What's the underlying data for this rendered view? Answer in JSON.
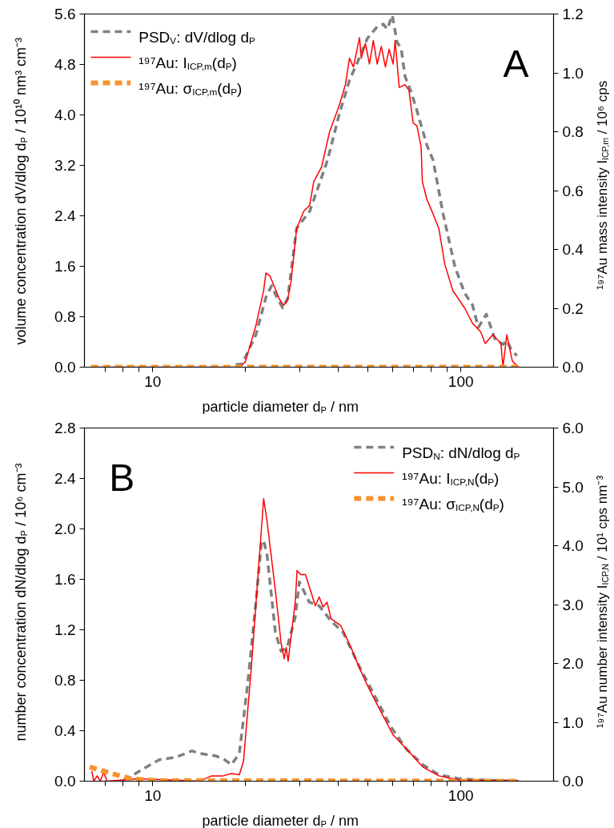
{
  "chart_data": [
    {
      "type": "line",
      "log": "x",
      "legend": "top left",
      "xlabel": "particle diameter d$_{P}$ / nm",
      "ylabel": "volume concentration dV/dlog d$_{P}$ / 10¹⁰ nm³ cm⁻³",
      "y2label": "¹⁹⁷Au mass intensity I$_{ICP,m}$ / 10⁶ cps",
      "annotations": [
        "A"
      ],
      "xlim": [
        6,
        200
      ],
      "xticks": [
        {
          "value": 7,
          "label": null
        },
        {
          "value": 8,
          "label": null
        },
        {
          "value": 9,
          "label": null
        },
        10,
        {
          "value": 20,
          "label": null
        },
        {
          "value": 30,
          "label": null
        },
        {
          "value": 40,
          "label": null
        },
        {
          "value": 50,
          "label": null
        },
        {
          "value": 60,
          "label": null
        },
        {
          "value": 70,
          "label": null
        },
        {
          "value": 80,
          "label": null
        },
        {
          "value": 90,
          "label": null
        },
        100
      ],
      "ylim": [
        0,
        5.6
      ],
      "yticks": [
        {
          "value": 0,
          "label": "0.0"
        },
        0.8,
        1.6,
        2.4,
        3.2,
        {
          "value": 4,
          "label": "4.0"
        },
        4.8,
        5.6
      ],
      "y2lim": [
        0,
        1.2
      ],
      "y2ticks": [
        {
          "value": 0,
          "label": "0.0"
        },
        0.2,
        0.4,
        0.6,
        0.8,
        {
          "value": 1,
          "label": "1.0"
        },
        1.2
      ],
      "series": [
        {
          "name": "PSD$_{V}$: dV/dlog d$_{P}$",
          "color": "#808080",
          "line_style": "dashed",
          "x": [
            18.6,
            19.5,
            21.6,
            23.3,
            24.3,
            25.1,
            26.4,
            27.4,
            29.3,
            30.9,
            32.3,
            33.8,
            36.9,
            40.3,
            43.5,
            46.9,
            49.7,
            53.5,
            56.0,
            57.7,
            59.9,
            62.1,
            64.0,
            65.9,
            68.9,
            72.0,
            77.6,
            81.3,
            87.5,
            95.7,
            103,
            109,
            114,
            121,
            129,
            137,
            141,
            145,
            152
          ],
          "values": [
            0.04,
            0.05,
            0.51,
            1.11,
            1.29,
            1.14,
            0.94,
            1.08,
            2.2,
            2.35,
            2.47,
            2.74,
            3.28,
            4.01,
            4.55,
            4.91,
            5.21,
            5.4,
            5.44,
            5.36,
            5.58,
            5.15,
            5.06,
            4.61,
            4.37,
            4.07,
            3.52,
            3.28,
            2.44,
            1.59,
            1.17,
            0.99,
            0.63,
            0.84,
            0.45,
            0.36,
            0.42,
            0.3,
            0.18
          ]
        },
        {
          "name": "¹⁹⁷Au: I$_{ICP,m}$(d$_{P}$)",
          "color": "#ff0000",
          "line_style": "solid",
          "axis": "y2",
          "x": [
            6.3,
            19.2,
            20.0,
            21.6,
            22.9,
            23.3,
            24.0,
            25.8,
            26.6,
            27.4,
            28.1,
            29.3,
            30.9,
            32.3,
            33.3,
            35.3,
            37.5,
            40.3,
            42.2,
            43.5,
            44.8,
            46.9,
            47.5,
            49.0,
            50.5,
            52.0,
            53.5,
            55.2,
            56.9,
            58.5,
            60.3,
            61.2,
            63.1,
            65.9,
            67.9,
            70.0,
            72.0,
            74.3,
            75.0,
            77.6,
            81.3,
            84.9,
            88.7,
            94.2,
            98.6,
            103,
            109,
            116,
            120,
            127,
            135,
            137,
            141,
            147,
            154
          ],
          "values": [
            0,
            0,
            0.02,
            0.14,
            0.26,
            0.32,
            0.31,
            0.23,
            0.21,
            0.23,
            0.29,
            0.47,
            0.53,
            0.55,
            0.63,
            0.68,
            0.8,
            0.89,
            0.96,
            1.05,
            1.02,
            1.12,
            1.05,
            1.1,
            1.03,
            1.11,
            1.03,
            1.09,
            1.02,
            1.08,
            1.03,
            1.11,
            0.95,
            0.96,
            0.94,
            0.83,
            0.82,
            0.75,
            0.63,
            0.57,
            0.52,
            0.47,
            0.35,
            0.26,
            0.23,
            0.2,
            0.15,
            0.12,
            0.08,
            0.11,
            0.08,
            0,
            0.11,
            0.02,
            0
          ]
        },
        {
          "name": "¹⁹⁷Au: σ$_{ICP,m}$(d$_{P}$)",
          "color": "#f7922f",
          "line_style": "dashed",
          "axis": "y2",
          "x": [
            6.3,
            155
          ],
          "values": [
            0,
            0
          ]
        }
      ]
    },
    {
      "type": "line",
      "log": "x",
      "legend": "top right",
      "xlabel": "particle diameter d$_{P}$ / nm",
      "ylabel": "number concentration dN/dlog d$_{P}$ / 10⁶ cm⁻³",
      "y2label": "¹⁹⁷Au number intensity I$_{ICP,N}$ / 10¹ cps nm⁻³",
      "annotations": [
        "B"
      ],
      "xlim": [
        6,
        200
      ],
      "xticks": [
        {
          "value": 7,
          "label": null
        },
        {
          "value": 8,
          "label": null
        },
        {
          "value": 9,
          "label": null
        },
        10,
        {
          "value": 20,
          "label": null
        },
        {
          "value": 30,
          "label": null
        },
        {
          "value": 40,
          "label": null
        },
        {
          "value": 50,
          "label": null
        },
        {
          "value": 60,
          "label": null
        },
        {
          "value": 70,
          "label": null
        },
        {
          "value": 80,
          "label": null
        },
        {
          "value": 90,
          "label": null
        },
        100
      ],
      "ylim": [
        0,
        2.8
      ],
      "yticks": [
        {
          "value": 0,
          "label": "0.0"
        },
        0.4,
        0.8,
        1.2,
        1.6,
        {
          "value": 2,
          "label": "2.0"
        },
        2.4,
        2.8
      ],
      "y2lim": [
        0,
        6
      ],
      "y2ticks": [
        {
          "value": 0,
          "label": "0.0"
        },
        {
          "value": 1,
          "label": "1.0"
        },
        {
          "value": 2,
          "label": "2.0"
        },
        {
          "value": 3,
          "label": "3.0"
        },
        {
          "value": 4,
          "label": "4.0"
        },
        {
          "value": 5,
          "label": "5.0"
        },
        {
          "value": 6,
          "label": "6.0"
        }
      ],
      "series": [
        {
          "name": "PSD$_{N}$: dN/dlog d$_{P}$",
          "color": "#808080",
          "line_style": "dashed",
          "x": [
            8.04,
            8.53,
            9.34,
            10.5,
            11.9,
            13.4,
            14.2,
            16.0,
            16.9,
            18.0,
            19.1,
            20.3,
            21.5,
            22.5,
            22.9,
            23.5,
            25.0,
            26.1,
            27.3,
            29.0,
            29.9,
            32.2,
            34.7,
            37.9,
            41.5,
            46.8,
            52.7,
            59.3,
            66.8,
            75.3,
            84.9,
            98.6,
            114,
            154
          ],
          "values": [
            0.01,
            0.04,
            0.1,
            0.17,
            0.19,
            0.24,
            0.22,
            0.2,
            0.18,
            0.13,
            0.22,
            0.76,
            1.36,
            1.88,
            1.91,
            1.79,
            1.18,
            1.03,
            1.06,
            1.3,
            1.58,
            1.42,
            1.39,
            1.27,
            1.18,
            0.91,
            0.67,
            0.43,
            0.25,
            0.13,
            0.05,
            0.02,
            0.01,
            0
          ]
        },
        {
          "name": "¹⁹⁷Au: I$_{ICP,N}$(d$_{P}$)",
          "color": "#ff0000",
          "line_style": "solid",
          "axis": "y2",
          "x": [
            6.34,
            6.43,
            6.6,
            6.75,
            6.93,
            7.1,
            9.0,
            14.2,
            15.5,
            16.9,
            18.0,
            19.1,
            19.7,
            20.9,
            22.2,
            22.9,
            23.5,
            25.0,
            26.1,
            26.7,
            27.1,
            27.5,
            29.0,
            29.4,
            30.2,
            31.3,
            33.7,
            34.7,
            35.7,
            36.8,
            37.9,
            40.8,
            44.0,
            46.8,
            49.7,
            52.7,
            55.9,
            60.2,
            66.8,
            75.3,
            84.9,
            98.6,
            154
          ],
          "values": [
            0.17,
            0,
            0.09,
            0,
            0.15,
            0,
            0.04,
            0,
            0.09,
            0.09,
            0.13,
            0.11,
            0.34,
            1.95,
            3.84,
            4.8,
            4.41,
            3.24,
            2.34,
            2.08,
            2.27,
            2.04,
            3.04,
            3.58,
            3.51,
            3.51,
            2.98,
            3.13,
            2.96,
            3.04,
            2.76,
            2.64,
            2.27,
            1.93,
            1.63,
            1.37,
            1.11,
            0.79,
            0.54,
            0.24,
            0.09,
            0.02,
            0
          ]
        },
        {
          "name": "¹⁹⁷Au: σ$_{ICP,N}$(d$_{P}$)",
          "color": "#f7922f",
          "line_style": "dashed",
          "axis": "y2",
          "x": [
            6.24,
            7.58,
            8.53,
            10.5,
            154
          ],
          "values": [
            0.24,
            0.11,
            0.04,
            0.01,
            0
          ]
        }
      ]
    }
  ]
}
